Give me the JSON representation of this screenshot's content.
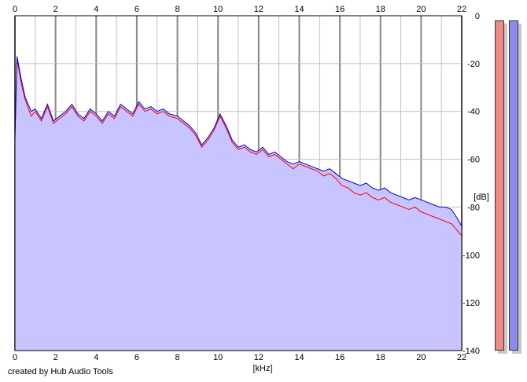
{
  "chart_data": {
    "type": "area",
    "title": "",
    "xlabel": "[kHz]",
    "ylabel": "[dB]",
    "xlim": [
      0,
      22
    ],
    "ylim": [
      -140,
      0
    ],
    "x_ticks": [
      "0",
      "2",
      "4",
      "6",
      "8",
      "10",
      "12",
      "14",
      "16",
      "18",
      "20",
      "22"
    ],
    "y_ticks": [
      "0",
      "-20",
      "-40",
      "-60",
      "-80",
      "-100",
      "-120",
      "-140"
    ],
    "grid": true,
    "series": [
      {
        "color": "#ff0000",
        "points": [
          [
            0,
            -50
          ],
          [
            0.1,
            -18
          ],
          [
            0.3,
            -28
          ],
          [
            0.5,
            -35
          ],
          [
            0.8,
            -42
          ],
          [
            1,
            -40
          ],
          [
            1.3,
            -44
          ],
          [
            1.6,
            -38
          ],
          [
            1.9,
            -45
          ],
          [
            2.2,
            -43
          ],
          [
            2.5,
            -41
          ],
          [
            2.8,
            -38
          ],
          [
            3.1,
            -42
          ],
          [
            3.4,
            -44
          ],
          [
            3.7,
            -40
          ],
          [
            4,
            -42
          ],
          [
            4.3,
            -45
          ],
          [
            4.6,
            -41
          ],
          [
            4.9,
            -43
          ],
          [
            5.2,
            -38
          ],
          [
            5.5,
            -40
          ],
          [
            5.8,
            -42
          ],
          [
            6.1,
            -37
          ],
          [
            6.4,
            -40
          ],
          [
            6.7,
            -39
          ],
          [
            7,
            -41
          ],
          [
            7.3,
            -40
          ],
          [
            7.6,
            -42
          ],
          [
            8,
            -43
          ],
          [
            8.3,
            -45
          ],
          [
            8.6,
            -47
          ],
          [
            8.9,
            -50
          ],
          [
            9.2,
            -55
          ],
          [
            9.5,
            -52
          ],
          [
            9.8,
            -48
          ],
          [
            10.1,
            -42
          ],
          [
            10.4,
            -47
          ],
          [
            10.7,
            -53
          ],
          [
            11,
            -56
          ],
          [
            11.3,
            -55
          ],
          [
            11.6,
            -57
          ],
          [
            11.9,
            -58
          ],
          [
            12.2,
            -56
          ],
          [
            12.5,
            -59
          ],
          [
            12.8,
            -58
          ],
          [
            13.1,
            -60
          ],
          [
            13.4,
            -62
          ],
          [
            13.7,
            -64
          ],
          [
            14,
            -62
          ],
          [
            14.3,
            -63
          ],
          [
            14.6,
            -64
          ],
          [
            14.9,
            -65
          ],
          [
            15.2,
            -67
          ],
          [
            15.5,
            -66
          ],
          [
            15.8,
            -68
          ],
          [
            16.1,
            -71
          ],
          [
            16.4,
            -72
          ],
          [
            16.7,
            -74
          ],
          [
            17,
            -75
          ],
          [
            17.3,
            -74
          ],
          [
            17.6,
            -76
          ],
          [
            17.9,
            -77
          ],
          [
            18.2,
            -76
          ],
          [
            18.5,
            -78
          ],
          [
            18.8,
            -79
          ],
          [
            19.1,
            -80
          ],
          [
            19.4,
            -81
          ],
          [
            19.7,
            -80
          ],
          [
            20,
            -82
          ],
          [
            20.3,
            -83
          ],
          [
            20.6,
            -84
          ],
          [
            20.9,
            -85
          ],
          [
            21.2,
            -86
          ],
          [
            21.5,
            -87
          ],
          [
            21.8,
            -90
          ],
          [
            22,
            -92
          ]
        ]
      },
      {
        "color": "#0000cc",
        "points": [
          [
            0,
            -52
          ],
          [
            0.1,
            -17
          ],
          [
            0.3,
            -26
          ],
          [
            0.5,
            -34
          ],
          [
            0.8,
            -40
          ],
          [
            1,
            -39
          ],
          [
            1.3,
            -43
          ],
          [
            1.6,
            -37
          ],
          [
            1.9,
            -44
          ],
          [
            2.2,
            -42
          ],
          [
            2.5,
            -40
          ],
          [
            2.8,
            -37
          ],
          [
            3.1,
            -41
          ],
          [
            3.4,
            -43
          ],
          [
            3.7,
            -39
          ],
          [
            4,
            -41
          ],
          [
            4.3,
            -44
          ],
          [
            4.6,
            -40
          ],
          [
            4.9,
            -42
          ],
          [
            5.2,
            -37
          ],
          [
            5.5,
            -39
          ],
          [
            5.8,
            -41
          ],
          [
            6.1,
            -36
          ],
          [
            6.4,
            -39
          ],
          [
            6.7,
            -38
          ],
          [
            7,
            -40
          ],
          [
            7.3,
            -39
          ],
          [
            7.6,
            -41
          ],
          [
            8,
            -42
          ],
          [
            8.3,
            -44
          ],
          [
            8.6,
            -46
          ],
          [
            8.9,
            -49
          ],
          [
            9.2,
            -54
          ],
          [
            9.5,
            -51
          ],
          [
            9.8,
            -47
          ],
          [
            10.1,
            -41
          ],
          [
            10.4,
            -46
          ],
          [
            10.7,
            -52
          ],
          [
            11,
            -55
          ],
          [
            11.3,
            -54
          ],
          [
            11.6,
            -56
          ],
          [
            11.9,
            -57
          ],
          [
            12.2,
            -55
          ],
          [
            12.5,
            -58
          ],
          [
            12.8,
            -57
          ],
          [
            13.1,
            -59
          ],
          [
            13.4,
            -61
          ],
          [
            13.7,
            -62
          ],
          [
            14,
            -61
          ],
          [
            14.3,
            -62
          ],
          [
            14.6,
            -63
          ],
          [
            14.9,
            -64
          ],
          [
            15.2,
            -65
          ],
          [
            15.5,
            -64
          ],
          [
            15.8,
            -66
          ],
          [
            16.1,
            -68
          ],
          [
            16.4,
            -69
          ],
          [
            16.7,
            -70
          ],
          [
            17,
            -71
          ],
          [
            17.3,
            -70
          ],
          [
            17.6,
            -72
          ],
          [
            17.9,
            -73
          ],
          [
            18.2,
            -72
          ],
          [
            18.5,
            -74
          ],
          [
            18.8,
            -75
          ],
          [
            19.1,
            -76
          ],
          [
            19.4,
            -77
          ],
          [
            19.7,
            -76
          ],
          [
            20,
            -77
          ],
          [
            20.3,
            -78
          ],
          [
            20.6,
            -79
          ],
          [
            20.9,
            -80
          ],
          [
            21.2,
            -80
          ],
          [
            21.5,
            -81
          ],
          [
            21.8,
            -85
          ],
          [
            22,
            -88
          ]
        ]
      }
    ],
    "fill_color": "#c8c4ff",
    "meters": [
      {
        "color": "#f08a84",
        "level": 1.0
      },
      {
        "color": "#8c8cf0",
        "level": 1.0
      }
    ]
  },
  "credit": "created by Hub Audio Tools"
}
